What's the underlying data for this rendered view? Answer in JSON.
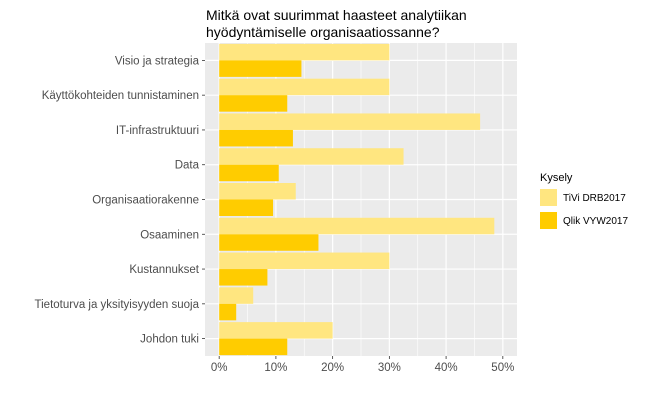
{
  "chart_data": {
    "type": "bar",
    "orientation": "horizontal",
    "title_lines": [
      "Mitkä ovat suurimmat haasteet analytiikan",
      "hyödyntämiselle organisaatiossanne?"
    ],
    "xlabel": "",
    "ylabel": "",
    "categories": [
      "Visio ja strategia",
      "Käyttökohteiden tunnistaminen",
      "IT-infrastruktuuri",
      "Data",
      "Organisaatiorakenne",
      "Osaaminen",
      "Kustannukset",
      "Tietoturva ja yksityisyyden suoja",
      "Johdon tuki"
    ],
    "series": [
      {
        "name": "TiVi DRB2017",
        "color": "#ffe680",
        "values": [
          30,
          30,
          46,
          32.5,
          13.5,
          48.5,
          30,
          6,
          20
        ]
      },
      {
        "name": "Qlik VYW2017",
        "color": "#ffcc00",
        "values": [
          14.5,
          12,
          13,
          10.5,
          9.5,
          17.5,
          8.5,
          3,
          12
        ]
      }
    ],
    "xlim": [
      -2.5,
      52.5
    ],
    "xticks": [
      0,
      10,
      20,
      30,
      40,
      50
    ],
    "xtick_labels": [
      "0%",
      "10%",
      "20%",
      "30%",
      "40%",
      "50%"
    ],
    "grid": true,
    "panel_background": "#ebebeb",
    "legend": {
      "title": "Kysely",
      "placement": "right"
    }
  }
}
